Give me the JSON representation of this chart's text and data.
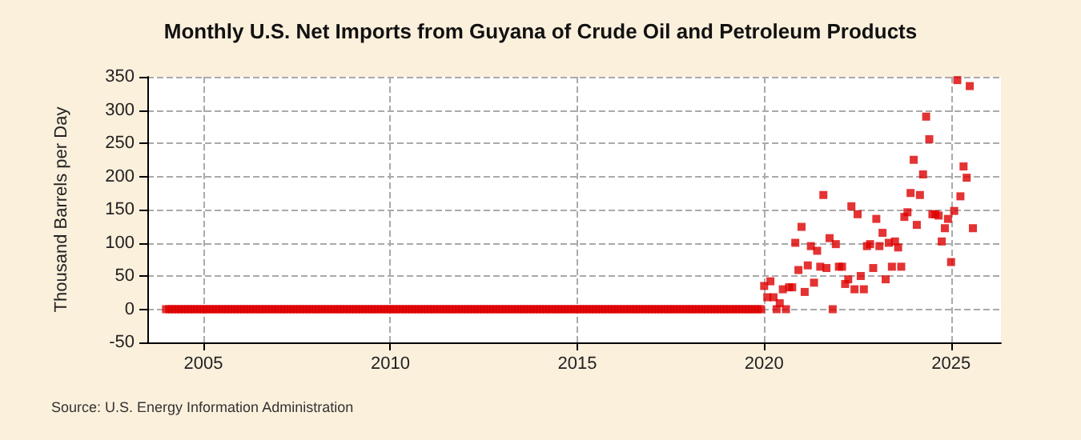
{
  "chart_data": {
    "type": "scatter",
    "title": "Monthly U.S. Net Imports from Guyana of Crude Oil and Petroleum Products",
    "ylabel": "Thousand Barrels per Day",
    "annotations": [
      "Source: U.S. Energy Information Administration"
    ],
    "marker": "square",
    "grid": true,
    "xlim": [
      "2003-07",
      "2026-05"
    ],
    "xticks": [
      "2005",
      "2010",
      "2015",
      "2020",
      "2025"
    ],
    "ylim": [
      -50,
      350
    ],
    "yticks": [
      -50,
      0,
      50,
      100,
      150,
      200,
      250,
      300,
      350
    ],
    "x": [
      "2004-01",
      "2004-02",
      "2004-03",
      "2004-04",
      "2004-05",
      "2004-06",
      "2004-07",
      "2004-08",
      "2004-09",
      "2004-10",
      "2004-11",
      "2004-12",
      "2005-01",
      "2005-02",
      "2005-03",
      "2005-04",
      "2005-05",
      "2005-06",
      "2005-07",
      "2005-08",
      "2005-09",
      "2005-10",
      "2005-11",
      "2005-12",
      "2006-01",
      "2006-02",
      "2006-03",
      "2006-04",
      "2006-05",
      "2006-06",
      "2006-07",
      "2006-08",
      "2006-09",
      "2006-10",
      "2006-11",
      "2006-12",
      "2007-01",
      "2007-02",
      "2007-03",
      "2007-04",
      "2007-05",
      "2007-06",
      "2007-07",
      "2007-08",
      "2007-09",
      "2007-10",
      "2007-11",
      "2007-12",
      "2008-01",
      "2008-02",
      "2008-03",
      "2008-04",
      "2008-05",
      "2008-06",
      "2008-07",
      "2008-08",
      "2008-09",
      "2008-10",
      "2008-11",
      "2008-12",
      "2009-01",
      "2009-02",
      "2009-03",
      "2009-04",
      "2009-05",
      "2009-06",
      "2009-07",
      "2009-08",
      "2009-09",
      "2009-10",
      "2009-11",
      "2009-12",
      "2010-01",
      "2010-02",
      "2010-03",
      "2010-04",
      "2010-05",
      "2010-06",
      "2010-07",
      "2010-08",
      "2010-09",
      "2010-10",
      "2010-11",
      "2010-12",
      "2011-01",
      "2011-02",
      "2011-03",
      "2011-04",
      "2011-05",
      "2011-06",
      "2011-07",
      "2011-08",
      "2011-09",
      "2011-10",
      "2011-11",
      "2011-12",
      "2012-01",
      "2012-02",
      "2012-03",
      "2012-04",
      "2012-05",
      "2012-06",
      "2012-07",
      "2012-08",
      "2012-09",
      "2012-10",
      "2012-11",
      "2012-12",
      "2013-01",
      "2013-02",
      "2013-03",
      "2013-04",
      "2013-05",
      "2013-06",
      "2013-07",
      "2013-08",
      "2013-09",
      "2013-10",
      "2013-11",
      "2013-12",
      "2014-01",
      "2014-02",
      "2014-03",
      "2014-04",
      "2014-05",
      "2014-06",
      "2014-07",
      "2014-08",
      "2014-09",
      "2014-10",
      "2014-11",
      "2014-12",
      "2015-01",
      "2015-02",
      "2015-03",
      "2015-04",
      "2015-05",
      "2015-06",
      "2015-07",
      "2015-08",
      "2015-09",
      "2015-10",
      "2015-11",
      "2015-12",
      "2016-01",
      "2016-02",
      "2016-03",
      "2016-04",
      "2016-05",
      "2016-06",
      "2016-07",
      "2016-08",
      "2016-09",
      "2016-10",
      "2016-11",
      "2016-12",
      "2017-01",
      "2017-02",
      "2017-03",
      "2017-04",
      "2017-05",
      "2017-06",
      "2017-07",
      "2017-08",
      "2017-09",
      "2017-10",
      "2017-11",
      "2017-12",
      "2018-01",
      "2018-02",
      "2018-03",
      "2018-04",
      "2018-05",
      "2018-06",
      "2018-07",
      "2018-08",
      "2018-09",
      "2018-10",
      "2018-11",
      "2018-12",
      "2019-01",
      "2019-02",
      "2019-03",
      "2019-04",
      "2019-05",
      "2019-06",
      "2019-07",
      "2019-08",
      "2019-09",
      "2019-10",
      "2019-11",
      "2019-12",
      "2020-01",
      "2020-02",
      "2020-03",
      "2020-04",
      "2020-05",
      "2020-06",
      "2020-07",
      "2020-08",
      "2020-09",
      "2020-10",
      "2020-11",
      "2020-12",
      "2021-01",
      "2021-02",
      "2021-03",
      "2021-04",
      "2021-05",
      "2021-06",
      "2021-07",
      "2021-08",
      "2021-09",
      "2021-10",
      "2021-11",
      "2021-12",
      "2022-01",
      "2022-02",
      "2022-03",
      "2022-04",
      "2022-05",
      "2022-06",
      "2022-07",
      "2022-08",
      "2022-09",
      "2022-10",
      "2022-11",
      "2022-12",
      "2023-01",
      "2023-02",
      "2023-03",
      "2023-04",
      "2023-05",
      "2023-06",
      "2023-07",
      "2023-08",
      "2023-09",
      "2023-10",
      "2023-11",
      "2023-12",
      "2024-01",
      "2024-02",
      "2024-03",
      "2024-04",
      "2024-05",
      "2024-06",
      "2024-07",
      "2024-08",
      "2024-09",
      "2024-10",
      "2024-11",
      "2024-12",
      "2025-01",
      "2025-02",
      "2025-03",
      "2025-04",
      "2025-05",
      "2025-06",
      "2025-07",
      "2025-08"
    ],
    "series": [
      {
        "color": "#dd0000",
        "values": [
          0,
          0,
          0,
          0,
          0,
          0,
          0,
          0,
          0,
          0,
          0,
          0,
          0,
          0,
          0,
          0,
          0,
          0,
          0,
          0,
          0,
          0,
          0,
          0,
          0,
          0,
          0,
          0,
          0,
          0,
          0,
          0,
          0,
          0,
          0,
          0,
          0,
          0,
          0,
          0,
          0,
          0,
          0,
          0,
          0,
          0,
          0,
          0,
          0,
          0,
          0,
          0,
          0,
          0,
          0,
          0,
          0,
          0,
          0,
          0,
          0,
          0,
          0,
          0,
          0,
          0,
          0,
          0,
          0,
          0,
          0,
          0,
          0,
          0,
          0,
          0,
          0,
          0,
          0,
          0,
          0,
          0,
          0,
          0,
          0,
          0,
          0,
          0,
          0,
          0,
          0,
          0,
          0,
          0,
          0,
          0,
          0,
          0,
          0,
          0,
          0,
          0,
          0,
          0,
          0,
          0,
          0,
          0,
          0,
          0,
          0,
          0,
          0,
          0,
          0,
          0,
          0,
          0,
          0,
          0,
          0,
          0,
          0,
          0,
          0,
          0,
          0,
          0,
          0,
          0,
          0,
          0,
          0,
          0,
          0,
          0,
          0,
          0,
          0,
          0,
          0,
          0,
          0,
          0,
          0,
          0,
          0,
          0,
          0,
          0,
          0,
          0,
          0,
          0,
          0,
          0,
          0,
          0,
          0,
          0,
          0,
          0,
          0,
          0,
          0,
          0,
          0,
          0,
          0,
          0,
          0,
          0,
          0,
          0,
          0,
          0,
          0,
          0,
          0,
          0,
          0,
          0,
          0,
          0,
          0,
          0,
          0,
          0,
          0,
          0,
          0,
          0,
          35,
          18,
          42,
          18,
          0,
          9,
          30,
          0,
          33,
          33,
          100,
          59,
          124,
          26,
          66,
          95,
          40,
          88,
          64,
          172,
          62,
          107,
          0,
          98,
          64,
          64,
          38,
          45,
          155,
          30,
          143,
          50,
          30,
          95,
          98,
          62,
          136,
          95,
          115,
          45,
          100,
          64,
          102,
          93,
          64,
          139,
          146,
          175,
          225,
          127,
          172,
          203,
          290,
          256,
          143,
          143,
          141,
          102,
          122,
          136,
          71,
          148,
          345,
          170,
          215,
          198,
          336,
          122
        ]
      }
    ]
  }
}
